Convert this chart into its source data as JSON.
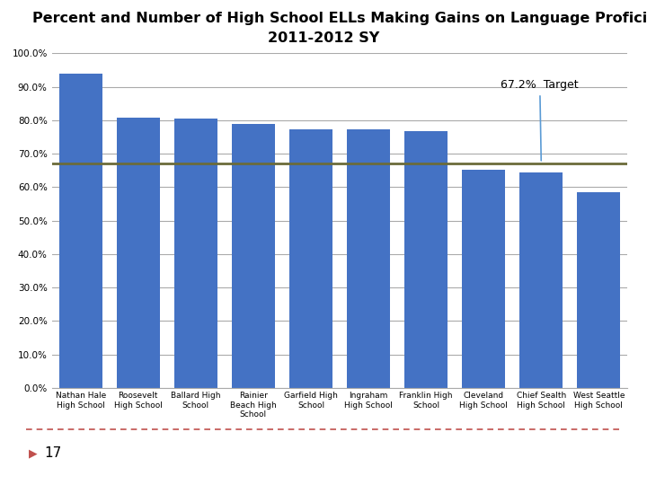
{
  "title_line1": "Percent and Number of High School ELLs Making Gains on Language Proficiency",
  "title_line2": "2011-2012 SY",
  "categories": [
    "Nathan Hale\nHigh School",
    "Roosevelt\nHigh School",
    "Ballard High\nSchool",
    "Rainier\nBeach High\nSchool",
    "Garfield High\nSchool",
    "Ingraham\nHigh School",
    "Franklin High\nSchool",
    "Cleveland\nHigh School",
    "Chief Sealth\nHigh School",
    "West Seattle\nHigh School"
  ],
  "values": [
    0.94,
    0.808,
    0.806,
    0.788,
    0.772,
    0.772,
    0.768,
    0.652,
    0.645,
    0.585
  ],
  "bar_color": "#4472C4",
  "target_line": 0.672,
  "target_line_color": "#6B6B3A",
  "target_label": "67.2%  Target",
  "ylim": [
    0.0,
    1.0
  ],
  "yticks": [
    0.0,
    0.1,
    0.2,
    0.3,
    0.4,
    0.5,
    0.6,
    0.7,
    0.8,
    0.9,
    1.0
  ],
  "ytick_labels": [
    "0.0%",
    "10.0%",
    "20.0%",
    "30.0%",
    "40.0%",
    "50.0%",
    "60.0%",
    "70.0%",
    "80.0%",
    "90.0%",
    "100.0%"
  ],
  "grid_color": "#AAAAAA",
  "background_color": "#FFFFFF",
  "title_fontsize": 11.5,
  "tick_fontsize": 7.5,
  "xtick_fontsize": 6.5,
  "footer_text": "17",
  "footer_color": "#C0504D",
  "arrow_color": "#5B9BD5"
}
